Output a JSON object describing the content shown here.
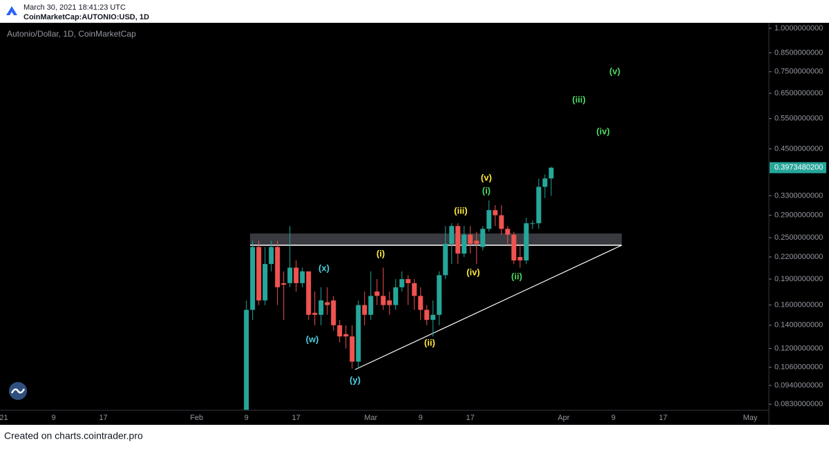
{
  "header": {
    "timestamp": "March 30, 2021 18:41:23 UTC",
    "symbol": "CoinMarketCap:AUTONIO:USD, 1D"
  },
  "footer": "Created on charts.cointrader.pro",
  "chart_data": {
    "type": "candlestick",
    "title": "Autonio/Dollar, 1D, CoinMarketCap",
    "up_color": "#26a69a",
    "down_color": "#ef5350",
    "log_scale": true,
    "grid": false,
    "x": [
      "Feb 9",
      "Feb 10",
      "Feb 11",
      "Feb 12",
      "Feb 13",
      "Feb 14",
      "Feb 15",
      "Feb 16",
      "Feb 17",
      "Feb 18",
      "Feb 19",
      "Feb 20",
      "Feb 21",
      "Feb 22",
      "Feb 23",
      "Feb 24",
      "Feb 25",
      "Feb 26",
      "Feb 27",
      "Feb 28",
      "Mar 1",
      "Mar 2",
      "Mar 3",
      "Mar 4",
      "Mar 5",
      "Mar 6",
      "Mar 7",
      "Mar 8",
      "Mar 9",
      "Mar 10",
      "Mar 11",
      "Mar 12",
      "Mar 13",
      "Mar 14",
      "Mar 15",
      "Mar 16",
      "Mar 17",
      "Mar 18",
      "Mar 19",
      "Mar 20",
      "Mar 21",
      "Mar 22",
      "Mar 23",
      "Mar 24",
      "Mar 25",
      "Mar 26",
      "Mar 27",
      "Mar 28",
      "Mar 29",
      "Mar 30"
    ],
    "open": [
      0.08,
      0.155,
      0.235,
      0.165,
      0.21,
      0.235,
      0.185,
      0.185,
      0.205,
      0.185,
      0.2,
      0.152,
      0.15,
      0.163,
      0.165,
      0.14,
      0.132,
      0.13,
      0.11,
      0.16,
      0.15,
      0.175,
      0.17,
      0.165,
      0.16,
      0.18,
      0.19,
      0.185,
      0.17,
      0.155,
      0.145,
      0.15,
      0.195,
      0.24,
      0.27,
      0.225,
      0.255,
      0.245,
      0.235,
      0.265,
      0.3,
      0.29,
      0.265,
      0.255,
      0.22,
      0.215,
      0.275,
      0.275,
      0.35,
      0.37
    ],
    "high": [
      0.165,
      0.245,
      0.245,
      0.235,
      0.245,
      0.245,
      0.2,
      0.27,
      0.215,
      0.205,
      0.2,
      0.175,
      0.18,
      0.18,
      0.17,
      0.145,
      0.14,
      0.14,
      0.165,
      0.175,
      0.2,
      0.19,
      0.205,
      0.175,
      0.19,
      0.2,
      0.195,
      0.19,
      0.18,
      0.16,
      0.165,
      0.2,
      0.27,
      0.275,
      0.275,
      0.27,
      0.27,
      0.26,
      0.27,
      0.32,
      0.31,
      0.31,
      0.27,
      0.26,
      0.24,
      0.285,
      0.28,
      0.37,
      0.38,
      0.4
    ],
    "low": [
      0.08,
      0.145,
      0.16,
      0.16,
      0.2,
      0.16,
      0.145,
      0.18,
      0.175,
      0.18,
      0.145,
      0.14,
      0.14,
      0.15,
      0.135,
      0.125,
      0.12,
      0.105,
      0.105,
      0.14,
      0.145,
      0.16,
      0.155,
      0.15,
      0.155,
      0.175,
      0.16,
      0.155,
      0.145,
      0.14,
      0.13,
      0.14,
      0.19,
      0.21,
      0.21,
      0.22,
      0.225,
      0.21,
      0.23,
      0.26,
      0.27,
      0.255,
      0.24,
      0.21,
      0.205,
      0.21,
      0.265,
      0.265,
      0.325,
      0.33
    ],
    "close": [
      0.155,
      0.235,
      0.165,
      0.21,
      0.235,
      0.18,
      0.183,
      0.205,
      0.185,
      0.2,
      0.15,
      0.15,
      0.165,
      0.16,
      0.14,
      0.13,
      0.13,
      0.11,
      0.16,
      0.15,
      0.17,
      0.17,
      0.16,
      0.16,
      0.18,
      0.19,
      0.185,
      0.17,
      0.155,
      0.145,
      0.15,
      0.195,
      0.24,
      0.27,
      0.225,
      0.255,
      0.24,
      0.24,
      0.265,
      0.3,
      0.29,
      0.265,
      0.255,
      0.215,
      0.215,
      0.275,
      0.275,
      0.35,
      0.37,
      0.39734802
    ],
    "last_price_label": "0.3973480200",
    "ylim": [
      0.0797,
      1.037
    ],
    "yticks": [
      {
        "value": 1,
        "label": "1.0000000000"
      },
      {
        "value": 0.85,
        "label": "0.8500000000"
      },
      {
        "value": 0.75,
        "label": "0.7500000000"
      },
      {
        "value": 0.65,
        "label": "0.6500000000"
      },
      {
        "value": 0.55,
        "label": "0.5500000000"
      },
      {
        "value": 0.45,
        "label": "0.4500000000"
      },
      {
        "value": 0.33,
        "label": "0.3300000000"
      },
      {
        "value": 0.29,
        "label": "0.2900000000"
      },
      {
        "value": 0.25,
        "label": "0.2500000000"
      },
      {
        "value": 0.22,
        "label": "0.2200000000"
      },
      {
        "value": 0.19,
        "label": "0.1900000000"
      },
      {
        "value": 0.16,
        "label": "0.1600000000"
      },
      {
        "value": 0.14,
        "label": "0.1400000000"
      },
      {
        "value": 0.12,
        "label": "0.1200000000"
      },
      {
        "value": 0.106,
        "label": "0.1060000000"
      },
      {
        "value": 0.094,
        "label": "0.0940000000"
      },
      {
        "value": 0.083,
        "label": "0.0830000000"
      }
    ],
    "xlim": [
      "Jan 1",
      "May 4"
    ],
    "xticks": [
      {
        "value": "Jan 1",
        "label": "21"
      },
      {
        "value": "Jan 9",
        "label": "9"
      },
      {
        "value": "Jan 17",
        "label": "17"
      },
      {
        "value": "Feb 1",
        "label": "Feb"
      },
      {
        "value": "Feb 9",
        "label": "9"
      },
      {
        "value": "Feb 17",
        "label": "17"
      },
      {
        "value": "Mar 1",
        "label": "Mar"
      },
      {
        "value": "Mar 9",
        "label": "9"
      },
      {
        "value": "Mar 17",
        "label": "17"
      },
      {
        "value": "Apr 1",
        "label": "Apr"
      },
      {
        "value": "Apr 9",
        "label": "9"
      },
      {
        "value": "Apr 17",
        "label": "17"
      },
      {
        "value": "May 1",
        "label": "May"
      }
    ],
    "annotations": [
      {
        "text": "(x)",
        "color": "#4dd0e1"
      },
      {
        "text": "(w)",
        "color": "#4dd0e1"
      },
      {
        "text": "(y)",
        "color": "#4dd0e1"
      },
      {
        "text": "(i)",
        "color": "#ffeb3b"
      },
      {
        "text": "(ii)",
        "color": "#ffeb3b"
      },
      {
        "text": "(iii)",
        "color": "#ffeb3b"
      },
      {
        "text": "(iv)",
        "color": "#ffeb3b"
      },
      {
        "text": "(v)",
        "color": "#ffeb3b"
      },
      {
        "text": "(i)",
        "color": "#4cd964"
      },
      {
        "text": "(ii)",
        "color": "#4cd964"
      },
      {
        "text": "(iii)",
        "color": "#4cd964"
      },
      {
        "text": "(iv)",
        "color": "#4cd964"
      },
      {
        "text": "(v)",
        "color": "#4cd964"
      }
    ]
  }
}
